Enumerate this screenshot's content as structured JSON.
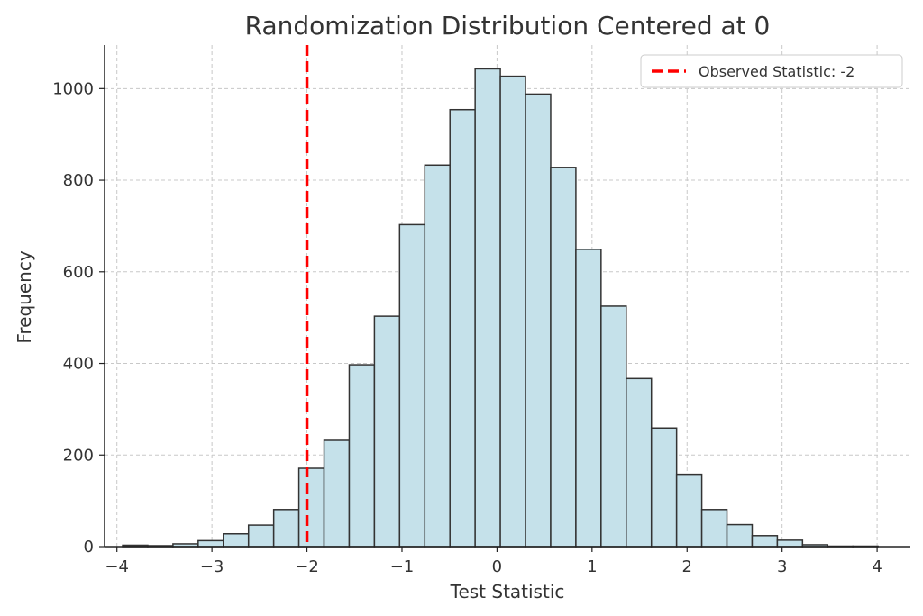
{
  "chart_data": {
    "type": "bar",
    "title": "Randomization Distribution Centered at 0",
    "xlabel": "Test Statistic",
    "ylabel": "Frequency",
    "xlim": [
      -4.13,
      4.35
    ],
    "ylim": [
      0,
      1095
    ],
    "xticks": [
      -4,
      -3,
      -2,
      -1,
      0,
      1,
      2,
      3,
      4
    ],
    "xtick_labels": [
      "−4",
      "−3",
      "−2",
      "−1",
      "0",
      "1",
      "2",
      "3",
      "4"
    ],
    "yticks": [
      0,
      200,
      400,
      600,
      800,
      1000
    ],
    "ytick_labels": [
      "0",
      "200",
      "400",
      "600",
      "800",
      "1000"
    ],
    "grid": true,
    "legend_position": "top-right",
    "bins": [
      {
        "x0": -3.94,
        "x1": -3.675,
        "value": 3
      },
      {
        "x0": -3.675,
        "x1": -3.41,
        "value": 2
      },
      {
        "x0": -3.41,
        "x1": -3.145,
        "value": 6
      },
      {
        "x0": -3.145,
        "x1": -2.88,
        "value": 13
      },
      {
        "x0": -2.88,
        "x1": -2.615,
        "value": 28
      },
      {
        "x0": -2.615,
        "x1": -2.35,
        "value": 47
      },
      {
        "x0": -2.35,
        "x1": -2.085,
        "value": 81
      },
      {
        "x0": -2.085,
        "x1": -1.82,
        "value": 171
      },
      {
        "x0": -1.82,
        "x1": -1.555,
        "value": 232
      },
      {
        "x0": -1.555,
        "x1": -1.29,
        "value": 397
      },
      {
        "x0": -1.29,
        "x1": -1.025,
        "value": 503
      },
      {
        "x0": -1.025,
        "x1": -0.76,
        "value": 703
      },
      {
        "x0": -0.76,
        "x1": -0.495,
        "value": 833
      },
      {
        "x0": -0.495,
        "x1": -0.23,
        "value": 954
      },
      {
        "x0": -0.23,
        "x1": 0.035,
        "value": 1043
      },
      {
        "x0": 0.035,
        "x1": 0.3,
        "value": 1027
      },
      {
        "x0": 0.3,
        "x1": 0.565,
        "value": 988
      },
      {
        "x0": 0.565,
        "x1": 0.83,
        "value": 828
      },
      {
        "x0": 0.83,
        "x1": 1.095,
        "value": 649
      },
      {
        "x0": 1.095,
        "x1": 1.36,
        "value": 525
      },
      {
        "x0": 1.36,
        "x1": 1.625,
        "value": 367
      },
      {
        "x0": 1.625,
        "x1": 1.89,
        "value": 259
      },
      {
        "x0": 1.89,
        "x1": 2.155,
        "value": 158
      },
      {
        "x0": 2.155,
        "x1": 2.42,
        "value": 81
      },
      {
        "x0": 2.42,
        "x1": 2.685,
        "value": 48
      },
      {
        "x0": 2.685,
        "x1": 2.95,
        "value": 24
      },
      {
        "x0": 2.95,
        "x1": 3.215,
        "value": 14
      },
      {
        "x0": 3.215,
        "x1": 3.48,
        "value": 4
      },
      {
        "x0": 3.48,
        "x1": 3.745,
        "value": 1
      },
      {
        "x0": 3.745,
        "x1": 4.01,
        "value": 1
      }
    ],
    "observed_statistic": {
      "value": -2,
      "label": "Observed Statistic: -2",
      "color": "#ff0000",
      "style": "dashed"
    },
    "colors": {
      "bar_fill": "#c5e1ea",
      "bar_edge": "#333333",
      "grid": "#c8c8c8"
    }
  }
}
